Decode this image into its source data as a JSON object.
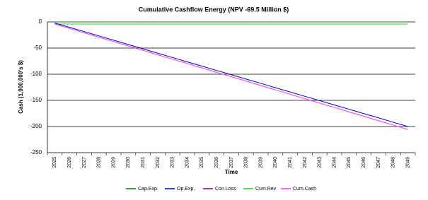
{
  "chart_data": {
    "type": "line",
    "title": "Cumulative Cashflow Energy  (NPV -69.5 Million $)",
    "x_label": "Time",
    "y_label": "Cash (1,000,000's $)",
    "categories": [
      "2025",
      "2026",
      "2027",
      "2028",
      "2029",
      "2030",
      "2031",
      "2032",
      "2033",
      "2034",
      "2035",
      "2036",
      "2037",
      "2038",
      "2039",
      "2040",
      "2041",
      "2042",
      "2043",
      "2044",
      "2045",
      "2046",
      "2047",
      "2048",
      "2049"
    ],
    "series": [
      {
        "name": "Cap.Exp.",
        "color": "#008000",
        "values": [
          0,
          0,
          0,
          0,
          0,
          0,
          0,
          0,
          0,
          0,
          0,
          0,
          0,
          0,
          0,
          0,
          0,
          0,
          0,
          0,
          0,
          0,
          0,
          0,
          0
        ]
      },
      {
        "name": "Op.Exp.",
        "color": "#0000cc",
        "values": [
          -2,
          -10.3,
          -18.5,
          -26.8,
          -35,
          -43.3,
          -51.5,
          -59.8,
          -68,
          -76.3,
          -84.5,
          -92.8,
          -101,
          -109.3,
          -117.5,
          -125.8,
          -134,
          -142.3,
          -150.5,
          -158.8,
          -167,
          -175.3,
          -183.5,
          -191.8,
          -200
        ]
      },
      {
        "name": "Con.Loss",
        "color": "#800080",
        "values": [
          0,
          0,
          0,
          0,
          0,
          0,
          0,
          0,
          0,
          0,
          0,
          0,
          0,
          0,
          0,
          0,
          0,
          0,
          0,
          0,
          0,
          0,
          0,
          0,
          0
        ]
      },
      {
        "name": "Cum.Rev",
        "color": "#33cc33",
        "values": [
          -4,
          -4,
          -4,
          -4,
          -4,
          -4,
          -4,
          -4,
          -4,
          -4,
          -4,
          -4,
          -4,
          -4,
          -4,
          -4,
          -4,
          -4,
          -4,
          -4,
          -4,
          -4,
          -4,
          -4,
          -4
        ]
      },
      {
        "name": "Cum.Cash",
        "color": "#ff33ff",
        "values": [
          -4,
          -12.4,
          -20.8,
          -29.2,
          -37.6,
          -46,
          -54.4,
          -62.8,
          -71.2,
          -79.6,
          -88,
          -96.4,
          -104.8,
          -113.2,
          -121.6,
          -130,
          -138.4,
          -146.8,
          -155.2,
          -163.6,
          -172,
          -180.4,
          -188.8,
          -197.2,
          -205.6
        ]
      }
    ],
    "ylim": [
      -250,
      0
    ],
    "yticks": [
      0,
      -50,
      -100,
      -150,
      -200,
      -250
    ],
    "grid": true
  }
}
